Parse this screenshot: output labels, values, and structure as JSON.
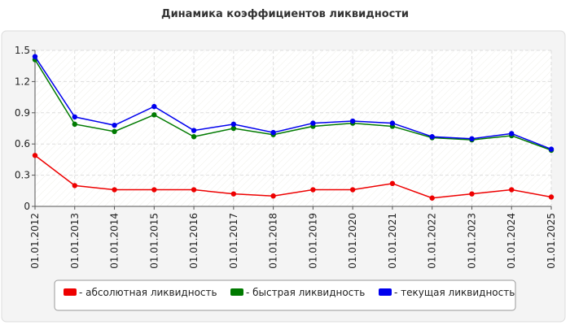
{
  "chart_data": {
    "type": "line",
    "title": "Динамика коэффициентов ликвидности",
    "categories": [
      "01.01.2012",
      "01.01.2013",
      "01.01.2014",
      "01.01.2015",
      "01.01.2016",
      "01.01.2017",
      "01.01.2018",
      "01.01.2019",
      "01.01.2020",
      "01.01.2021",
      "01.01.2022",
      "01.01.2023",
      "01.01.2024",
      "01.01.2025"
    ],
    "series": [
      {
        "name": "- абсолютная ликвидность",
        "color": "#ee0000",
        "values": [
          0.49,
          0.2,
          0.16,
          0.16,
          0.16,
          0.12,
          0.1,
          0.16,
          0.16,
          0.22,
          0.08,
          0.12,
          0.16,
          0.09
        ]
      },
      {
        "name": "- быстрая ликвидность",
        "color": "#007a00",
        "values": [
          1.41,
          0.79,
          0.72,
          0.88,
          0.67,
          0.75,
          0.69,
          0.77,
          0.8,
          0.77,
          0.66,
          0.64,
          0.68,
          0.54
        ]
      },
      {
        "name": "- текущая ликвидность",
        "color": "#0000ee",
        "values": [
          1.44,
          0.86,
          0.78,
          0.96,
          0.73,
          0.79,
          0.71,
          0.8,
          0.82,
          0.8,
          0.67,
          0.65,
          0.7,
          0.55
        ]
      }
    ],
    "ylim": [
      0,
      1.5
    ],
    "yticks": [
      0,
      0.3,
      0.6,
      0.9,
      1.2,
      1.5
    ],
    "grid": true
  }
}
